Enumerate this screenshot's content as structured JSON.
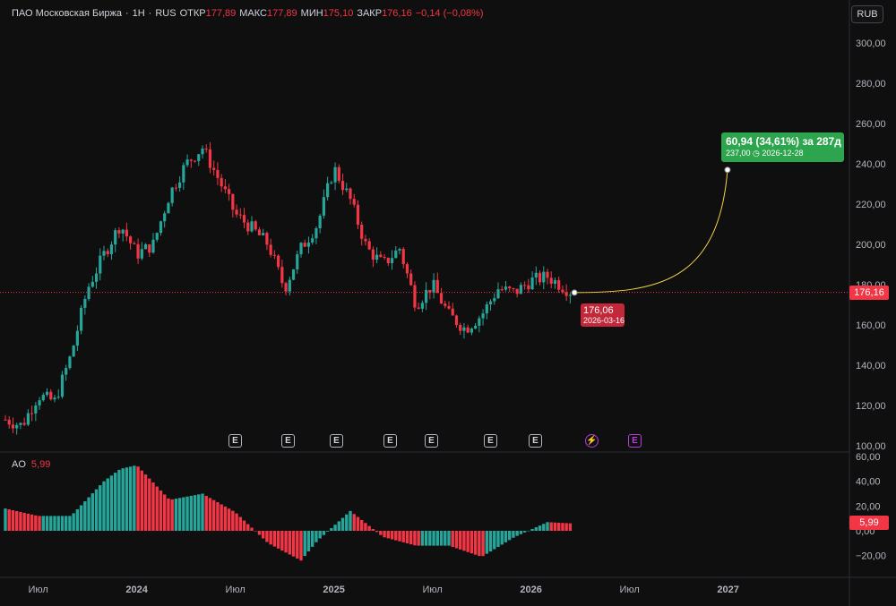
{
  "header": {
    "name": "ПАО Московская Биржа",
    "sep1": "·",
    "interval": "1Н",
    "sep2": "·",
    "exchange": "RUS",
    "open_label": "ОТКР",
    "open_value": "177,89",
    "high_label": "МАКС",
    "high_value": "177,89",
    "low_label": "МИН",
    "low_value": "175,10",
    "close_label": "ЗАКР",
    "close_value": "176,16",
    "change": "−0,14 (−0,08%)"
  },
  "currency_button": "RUB",
  "colors": {
    "up": "#26a69a",
    "down": "#f23645",
    "projection": "#f5d547",
    "panel_bg": "#0f0f0f"
  },
  "projection": {
    "summary": "60,94 (34,61%) за 287д",
    "target_price": "237,00",
    "target_date": "2026-12-28",
    "clock_icon": "clock-icon",
    "start_price": "176,06",
    "start_date": "2026-03-16"
  },
  "events": [
    "E",
    "E",
    "E",
    "E",
    "E",
    "E",
    "E",
    "lightning",
    "E"
  ],
  "ao_panel": {
    "label": "AO",
    "value": "5,99"
  },
  "price_tag": "176,16",
  "chart_data": [
    {
      "type": "candlestick",
      "title": "ПАО Московская Биржа · 1Н · RUS",
      "ylim": [
        97,
        307
      ],
      "y_ticks": [
        "300,00",
        "280,00",
        "260,00",
        "240,00",
        "220,00",
        "200,00",
        "180,00",
        "160,00",
        "140,00",
        "120,00",
        "100,00"
      ],
      "x_ticks": [
        "Июл",
        "2024",
        "Июл",
        "2025",
        "Июл",
        "2026",
        "Июл",
        "2027"
      ],
      "last_price": 176.16,
      "series": [
        {
          "name": "price",
          "key_points": [
            {
              "x": "2023-05",
              "y": 113
            },
            {
              "x": "2023-06",
              "y": 110
            },
            {
              "x": "2023-07",
              "y": 125
            },
            {
              "x": "2023-08",
              "y": 122
            },
            {
              "x": "2023-09",
              "y": 145
            },
            {
              "x": "2023-10",
              "y": 178
            },
            {
              "x": "2023-11",
              "y": 195
            },
            {
              "x": "2023-12",
              "y": 210
            },
            {
              "x": "2024-01",
              "y": 195
            },
            {
              "x": "2024-02",
              "y": 200
            },
            {
              "x": "2024-03",
              "y": 225
            },
            {
              "x": "2024-04",
              "y": 240
            },
            {
              "x": "2024-05",
              "y": 248
            },
            {
              "x": "2024-06",
              "y": 232
            },
            {
              "x": "2024-07",
              "y": 215
            },
            {
              "x": "2024-08",
              "y": 208
            },
            {
              "x": "2024-09",
              "y": 200
            },
            {
              "x": "2024-10",
              "y": 178
            },
            {
              "x": "2024-11",
              "y": 198
            },
            {
              "x": "2024-12",
              "y": 210
            },
            {
              "x": "2025-01",
              "y": 238
            },
            {
              "x": "2025-02",
              "y": 222
            },
            {
              "x": "2025-03",
              "y": 198
            },
            {
              "x": "2025-04",
              "y": 190
            },
            {
              "x": "2025-05",
              "y": 198
            },
            {
              "x": "2025-06",
              "y": 170
            },
            {
              "x": "2025-07",
              "y": 180
            },
            {
              "x": "2025-08",
              "y": 165
            },
            {
              "x": "2025-09",
              "y": 158
            },
            {
              "x": "2025-10",
              "y": 165
            },
            {
              "x": "2025-11",
              "y": 178
            },
            {
              "x": "2025-12",
              "y": 176
            },
            {
              "x": "2026-01",
              "y": 182
            },
            {
              "x": "2026-02",
              "y": 184
            },
            {
              "x": "2026-03",
              "y": 176.16
            }
          ]
        }
      ]
    },
    {
      "type": "bar",
      "title": "AO",
      "ylim": [
        -30,
        62
      ],
      "y_ticks": [
        "60,00",
        "40,00",
        "20,00",
        "0,00",
        "−20,00"
      ],
      "series": [
        {
          "name": "AO",
          "key_points": [
            {
              "x": "2023-05",
              "y": 18
            },
            {
              "x": "2023-07",
              "y": 12
            },
            {
              "x": "2023-09",
              "y": 12
            },
            {
              "x": "2023-11",
              "y": 40
            },
            {
              "x": "2023-12",
              "y": 50
            },
            {
              "x": "2024-01",
              "y": 53
            },
            {
              "x": "2024-03",
              "y": 25
            },
            {
              "x": "2024-05",
              "y": 30
            },
            {
              "x": "2024-07",
              "y": 15
            },
            {
              "x": "2024-09",
              "y": -10
            },
            {
              "x": "2024-11",
              "y": -24
            },
            {
              "x": "2024-12",
              "y": -8
            },
            {
              "x": "2025-02",
              "y": 16
            },
            {
              "x": "2025-04",
              "y": -5
            },
            {
              "x": "2025-06",
              "y": -12
            },
            {
              "x": "2025-08",
              "y": -12
            },
            {
              "x": "2025-10",
              "y": -21
            },
            {
              "x": "2025-12",
              "y": -5
            },
            {
              "x": "2026-02",
              "y": 7
            },
            {
              "x": "2026-03",
              "y": 5.99
            }
          ]
        }
      ]
    }
  ]
}
